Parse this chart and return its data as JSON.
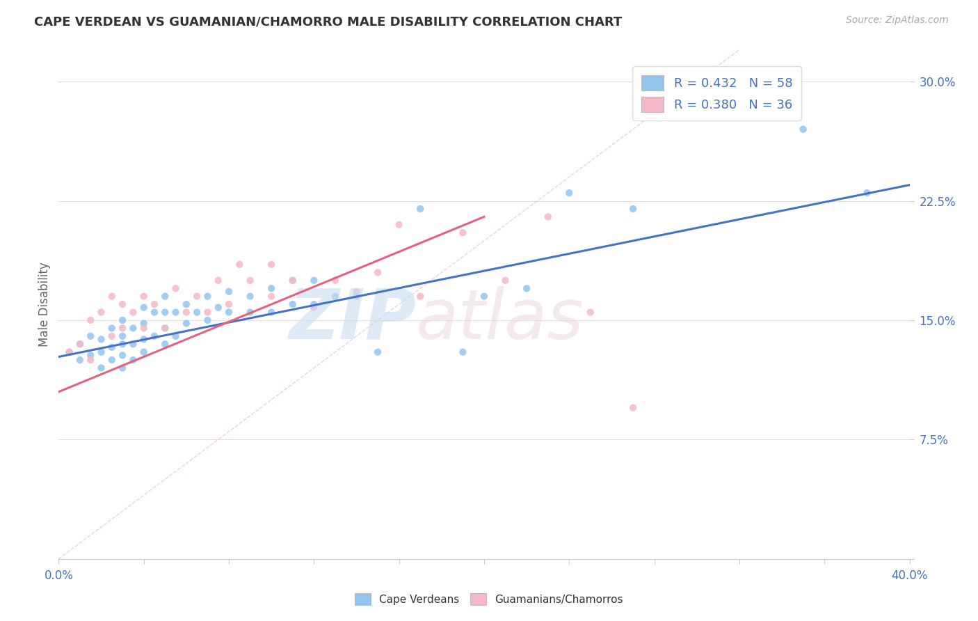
{
  "title": "CAPE VERDEAN VS GUAMANIAN/CHAMORRO MALE DISABILITY CORRELATION CHART",
  "source": "Source: ZipAtlas.com",
  "ylabel": "Male Disability",
  "xlim": [
    0.0,
    0.4
  ],
  "ylim": [
    0.0,
    0.32
  ],
  "yticks": [
    0.0,
    0.075,
    0.15,
    0.225,
    0.3
  ],
  "ytick_labels": [
    "",
    "7.5%",
    "15.0%",
    "22.5%",
    "30.0%"
  ],
  "xticks": [
    0.0,
    0.04,
    0.08,
    0.12,
    0.16,
    0.2,
    0.24,
    0.28,
    0.32,
    0.36,
    0.4
  ],
  "xtick_labels": [
    "0.0%",
    "",
    "",
    "",
    "",
    "",
    "",
    "",
    "",
    "",
    "40.0%"
  ],
  "blue_R": 0.432,
  "blue_N": 58,
  "pink_R": 0.38,
  "pink_N": 36,
  "blue_color": "#92C5F0",
  "pink_color": "#F5B8C8",
  "blue_line_color": "#4472C4",
  "pink_line_color": "#E86080",
  "dashed_line_color": "#F5B8C8",
  "legend_label_blue": "R = 0.432   N = 58",
  "legend_label_pink": "R = 0.380   N = 36",
  "blue_line_x": [
    0.0,
    0.4
  ],
  "blue_line_y": [
    0.127,
    0.235
  ],
  "pink_line_x": [
    0.0,
    0.2
  ],
  "pink_line_y": [
    0.105,
    0.215
  ],
  "dashed_line_x": [
    0.0,
    0.4
  ],
  "dashed_line_y": [
    0.0,
    0.4
  ],
  "blue_scatter_x": [
    0.005,
    0.01,
    0.01,
    0.015,
    0.015,
    0.02,
    0.02,
    0.02,
    0.025,
    0.025,
    0.025,
    0.03,
    0.03,
    0.03,
    0.03,
    0.03,
    0.035,
    0.035,
    0.035,
    0.04,
    0.04,
    0.04,
    0.04,
    0.045,
    0.045,
    0.05,
    0.05,
    0.05,
    0.05,
    0.055,
    0.055,
    0.06,
    0.06,
    0.065,
    0.07,
    0.07,
    0.075,
    0.08,
    0.08,
    0.09,
    0.09,
    0.1,
    0.1,
    0.11,
    0.11,
    0.12,
    0.12,
    0.13,
    0.14,
    0.15,
    0.17,
    0.19,
    0.2,
    0.22,
    0.24,
    0.27,
    0.35,
    0.38
  ],
  "blue_scatter_y": [
    0.13,
    0.125,
    0.135,
    0.128,
    0.14,
    0.12,
    0.13,
    0.138,
    0.125,
    0.133,
    0.145,
    0.12,
    0.128,
    0.135,
    0.14,
    0.15,
    0.125,
    0.135,
    0.145,
    0.13,
    0.138,
    0.148,
    0.158,
    0.14,
    0.155,
    0.135,
    0.145,
    0.155,
    0.165,
    0.14,
    0.155,
    0.148,
    0.16,
    0.155,
    0.15,
    0.165,
    0.158,
    0.155,
    0.168,
    0.155,
    0.165,
    0.155,
    0.17,
    0.16,
    0.175,
    0.16,
    0.175,
    0.165,
    0.165,
    0.13,
    0.22,
    0.13,
    0.165,
    0.17,
    0.23,
    0.22,
    0.27,
    0.23
  ],
  "pink_scatter_x": [
    0.005,
    0.01,
    0.015,
    0.015,
    0.02,
    0.025,
    0.025,
    0.03,
    0.03,
    0.035,
    0.04,
    0.04,
    0.045,
    0.05,
    0.055,
    0.06,
    0.065,
    0.07,
    0.075,
    0.08,
    0.085,
    0.09,
    0.1,
    0.1,
    0.11,
    0.12,
    0.13,
    0.14,
    0.15,
    0.16,
    0.17,
    0.19,
    0.21,
    0.23,
    0.25,
    0.27
  ],
  "pink_scatter_y": [
    0.13,
    0.135,
    0.125,
    0.15,
    0.155,
    0.14,
    0.165,
    0.145,
    0.16,
    0.155,
    0.145,
    0.165,
    0.16,
    0.145,
    0.17,
    0.155,
    0.165,
    0.155,
    0.175,
    0.16,
    0.185,
    0.175,
    0.165,
    0.185,
    0.175,
    0.158,
    0.175,
    0.168,
    0.18,
    0.21,
    0.165,
    0.205,
    0.175,
    0.215,
    0.155,
    0.095
  ]
}
